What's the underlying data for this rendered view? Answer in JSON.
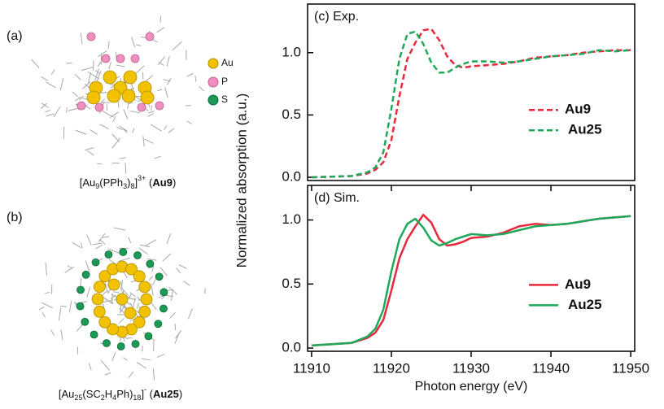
{
  "panels": {
    "a_label": "(a)",
    "b_label": "(b)",
    "legend": [
      "Au",
      "P",
      "S"
    ],
    "caption_a": [
      "[Au",
      "9",
      "(PPh",
      "3",
      ")",
      "8",
      "]",
      "3+",
      " (",
      "Au9",
      ")"
    ],
    "caption_b": [
      "[Au",
      "25",
      "(SC",
      "2",
      "H",
      "4",
      "Ph)",
      "18",
      "]",
      "-",
      " (",
      "Au25",
      ")"
    ],
    "ylabel": "Normalized absorption (a.u.)"
  },
  "chart_data": [
    {
      "type": "line",
      "title": "(c) Exp.",
      "linestyle": "dashed",
      "legend": "right",
      "x": [
        11910,
        11915,
        11917,
        11918,
        11919,
        11920,
        11921,
        11922,
        11923,
        11924,
        11925,
        11926,
        11927,
        11928,
        11929,
        11930,
        11932,
        11934,
        11936,
        11938,
        11940,
        11942,
        11944,
        11946,
        11948,
        11950
      ],
      "xlim": [
        11909.5,
        11950.5
      ],
      "ylim": [
        -0.026,
        1.39
      ],
      "yticks": [
        {
          "value": 0,
          "label": "0.0"
        },
        {
          "value": 0.5,
          "label": "0.5"
        },
        {
          "value": 1,
          "label": "1.0"
        }
      ],
      "series": [
        {
          "name": "Au9",
          "color": "#e8283c",
          "values": [
            0,
            0.01,
            0.03,
            0.06,
            0.12,
            0.3,
            0.65,
            0.95,
            1.08,
            1.18,
            1.19,
            1.1,
            0.97,
            0.9,
            0.88,
            0.89,
            0.9,
            0.91,
            0.93,
            0.96,
            0.97,
            0.98,
            1.0,
            1.01,
            1.02,
            1.02
          ]
        },
        {
          "name": "Au25",
          "color": "#1fa85a",
          "values": [
            0,
            0.01,
            0.04,
            0.08,
            0.2,
            0.55,
            0.95,
            1.15,
            1.17,
            1.07,
            0.92,
            0.84,
            0.84,
            0.88,
            0.91,
            0.93,
            0.93,
            0.92,
            0.93,
            0.95,
            0.97,
            0.98,
            0.99,
            1.02,
            1.01,
            1.02
          ]
        }
      ]
    },
    {
      "type": "line",
      "title": "(d) Sim.",
      "linestyle": "solid",
      "legend": "right",
      "x": [
        11910,
        11915,
        11917,
        11918,
        11919,
        11920,
        11921,
        11922,
        11923,
        11924,
        11925,
        11926,
        11927,
        11928,
        11929,
        11930,
        11932,
        11934,
        11936,
        11938,
        11940,
        11942,
        11944,
        11946,
        11948,
        11950
      ],
      "xlim": [
        11909.5,
        11950.5
      ],
      "ylim": [
        -0.025,
        1.27
      ],
      "xticks": [
        11910,
        11920,
        11930,
        11940,
        11950
      ],
      "yticks": [
        {
          "value": 0,
          "label": "0.0"
        },
        {
          "value": 0.5,
          "label": "0.5"
        },
        {
          "value": 1,
          "label": "1.0"
        }
      ],
      "xlabel": "Photon energy (eV)",
      "series": [
        {
          "name": "Au9",
          "color": "#e8283c",
          "values": [
            0.02,
            0.04,
            0.08,
            0.12,
            0.22,
            0.45,
            0.7,
            0.85,
            0.95,
            1.04,
            0.98,
            0.85,
            0.8,
            0.81,
            0.83,
            0.86,
            0.87,
            0.9,
            0.95,
            0.97,
            0.96,
            0.97,
            0.99,
            1.01,
            1.02,
            1.03
          ]
        },
        {
          "name": "Au25",
          "color": "#1fa85a",
          "values": [
            0.02,
            0.04,
            0.09,
            0.15,
            0.3,
            0.6,
            0.85,
            0.97,
            1.01,
            0.94,
            0.84,
            0.8,
            0.82,
            0.85,
            0.87,
            0.89,
            0.88,
            0.89,
            0.92,
            0.95,
            0.96,
            0.97,
            0.99,
            1.01,
            1.02,
            1.03
          ]
        }
      ]
    }
  ]
}
